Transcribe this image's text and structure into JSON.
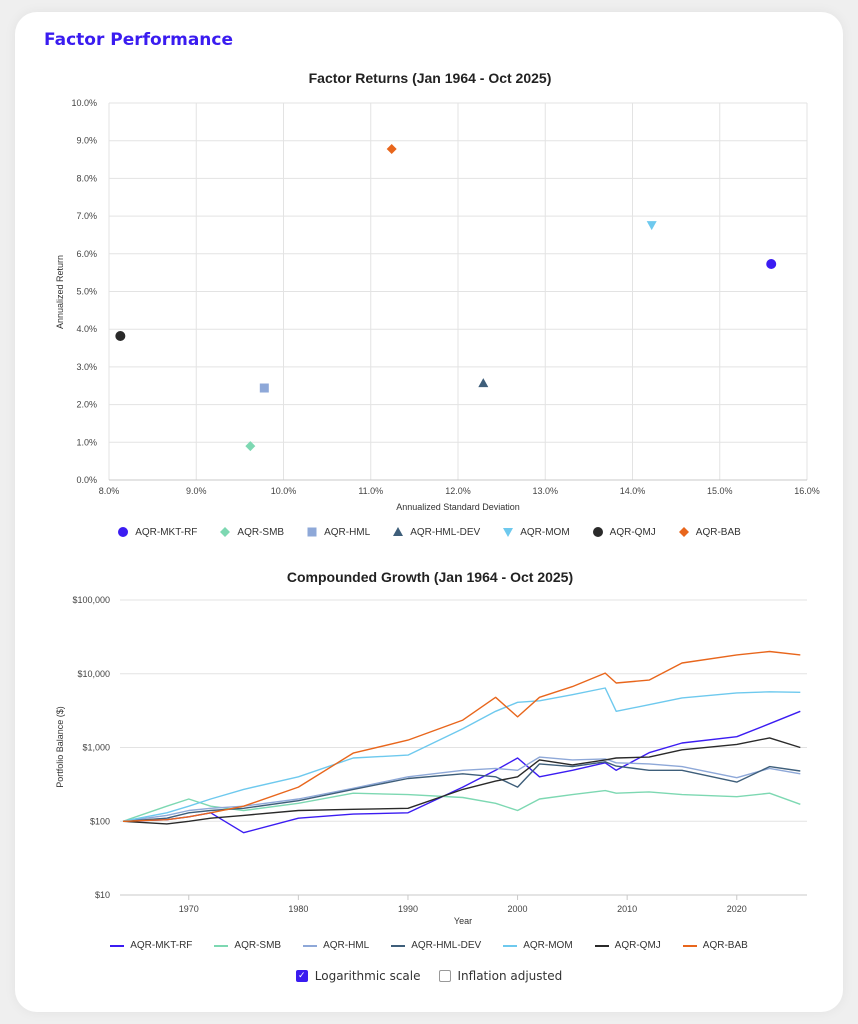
{
  "page_title": "Factor Performance",
  "colors": {
    "AQR-MKT-RF": "#3b1cf2",
    "AQR-SMB": "#7dd8b2",
    "AQR-HML": "#8ea8d8",
    "AQR-HML-DEV": "#3e5e7a",
    "AQR-MOM": "#6ec9ee",
    "AQR-QMJ": "#2a2a2a",
    "AQR-BAB": "#e8661c"
  },
  "chart_data": [
    {
      "type": "scatter",
      "title": "Factor Returns (Jan 1964 - Oct 2025)",
      "xlabel": "Annualized Standard Deviation",
      "ylabel": "Annualized Return",
      "xlim": [
        8,
        16
      ],
      "ylim": [
        0,
        10
      ],
      "x_ticks": [
        "8.0%",
        "9.0%",
        "10.0%",
        "11.0%",
        "12.0%",
        "13.0%",
        "14.0%",
        "15.0%",
        "16.0%"
      ],
      "y_ticks": [
        "0.0%",
        "1.0%",
        "2.0%",
        "3.0%",
        "4.0%",
        "5.0%",
        "6.0%",
        "7.0%",
        "8.0%",
        "9.0%",
        "10.0%"
      ],
      "grid": true,
      "legend_position": "bottom",
      "points": [
        {
          "name": "AQR-MKT-RF",
          "marker": "circle",
          "x": 15.59,
          "y": 5.73
        },
        {
          "name": "AQR-SMB",
          "marker": "diamond",
          "x": 9.62,
          "y": 0.9
        },
        {
          "name": "AQR-HML",
          "marker": "square",
          "x": 9.78,
          "y": 2.44
        },
        {
          "name": "AQR-HML-DEV",
          "marker": "triangle-up",
          "x": 12.29,
          "y": 2.57
        },
        {
          "name": "AQR-MOM",
          "marker": "triangle-down",
          "x": 14.22,
          "y": 6.76
        },
        {
          "name": "AQR-QMJ",
          "marker": "circle",
          "x": 8.13,
          "y": 3.82
        },
        {
          "name": "AQR-BAB",
          "marker": "diamond",
          "x": 11.24,
          "y": 8.78
        }
      ]
    },
    {
      "type": "line",
      "title": "Compounded Growth (Jan 1964 - Oct 2025)",
      "xlabel": "Year",
      "ylabel": "Portfolio Balance ($)",
      "log_scale": true,
      "xlim": [
        1964,
        2025.8
      ],
      "ylim": [
        10,
        100000
      ],
      "x_ticks": [
        "1970",
        "1980",
        "1990",
        "2000",
        "2010",
        "2020"
      ],
      "y_ticks": [
        "$10",
        "$100",
        "$1,000",
        "$10,000",
        "$100,000"
      ],
      "grid": true,
      "legend_position": "bottom",
      "x": [
        1964,
        1968,
        1970,
        1972,
        1975,
        1980,
        1985,
        1990,
        1995,
        1998,
        2000,
        2002,
        2005,
        2008,
        2009,
        2012,
        2015,
        2020,
        2023,
        2025.8
      ],
      "series": [
        {
          "name": "AQR-MKT-RF",
          "values": [
            100,
            105,
            115,
            130,
            70,
            110,
            125,
            130,
            290,
            490,
            720,
            400,
            490,
            620,
            490,
            850,
            1150,
            1400,
            2100,
            3100
          ]
        },
        {
          "name": "AQR-SMB",
          "values": [
            100,
            160,
            200,
            160,
            140,
            175,
            240,
            230,
            210,
            175,
            140,
            200,
            230,
            260,
            240,
            250,
            230,
            215,
            240,
            170
          ]
        },
        {
          "name": "AQR-HML",
          "values": [
            100,
            120,
            140,
            150,
            160,
            200,
            280,
            400,
            490,
            520,
            490,
            740,
            680,
            700,
            620,
            600,
            550,
            390,
            520,
            440
          ]
        },
        {
          "name": "AQR-HML-DEV",
          "values": [
            100,
            110,
            130,
            140,
            150,
            190,
            270,
            380,
            440,
            400,
            290,
            600,
            550,
            640,
            560,
            490,
            490,
            340,
            550,
            480
          ]
        },
        {
          "name": "AQR-MOM",
          "values": [
            100,
            130,
            160,
            200,
            270,
            400,
            720,
            790,
            1800,
            3100,
            4100,
            4300,
            5200,
            6400,
            3100,
            3800,
            4700,
            5500,
            5700,
            5600
          ]
        },
        {
          "name": "AQR-QMJ",
          "values": [
            100,
            92,
            100,
            110,
            120,
            140,
            145,
            150,
            270,
            350,
            400,
            680,
            580,
            680,
            720,
            740,
            930,
            1100,
            1350,
            1000
          ]
        },
        {
          "name": "AQR-BAB",
          "values": [
            100,
            105,
            115,
            130,
            160,
            290,
            840,
            1260,
            2350,
            4800,
            2600,
            4800,
            6700,
            10200,
            7500,
            8200,
            14000,
            18000,
            20000,
            18000
          ]
        }
      ]
    }
  ],
  "options": {
    "log_scale_label": "Logarithmic scale",
    "log_scale_checked": true,
    "inflation_label": "Inflation adjusted",
    "inflation_checked": false
  }
}
